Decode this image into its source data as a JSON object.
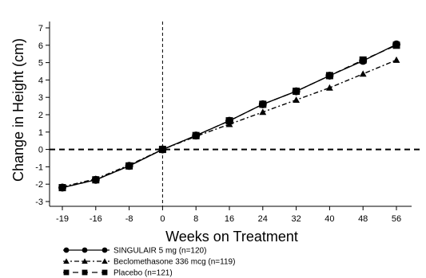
{
  "chart_data": {
    "type": "line",
    "xlabel": "Weeks on Treatment",
    "ylabel": "Change in Height (cm)",
    "x_ticks": [
      -19,
      -16,
      -8,
      0,
      8,
      16,
      24,
      32,
      40,
      48,
      56
    ],
    "x_tick_labels": [
      "-19",
      "-16",
      "-8",
      "0",
      "8",
      "16",
      "24",
      "32",
      "40",
      "48",
      "56"
    ],
    "y_ticks": [
      -3,
      -2,
      -1,
      0,
      1,
      2,
      3,
      4,
      5,
      6,
      7
    ],
    "y_tick_labels": [
      "-3",
      "-2",
      "-1",
      "0",
      "1",
      "2",
      "3",
      "4",
      "5",
      "6",
      "7"
    ],
    "ylim": [
      -3,
      7
    ],
    "reference_lines": {
      "x": 0,
      "y": 0
    },
    "series": [
      {
        "name": "SINGULAIR 5 mg (n=120)",
        "marker": "circle",
        "line_style": "solid",
        "x": [
          -19,
          -16,
          -8,
          0,
          8,
          16,
          24,
          32,
          40,
          48,
          56
        ],
        "values": [
          -2.2,
          -1.75,
          -0.95,
          0,
          0.8,
          1.65,
          2.6,
          3.35,
          4.25,
          5.1,
          6.05
        ]
      },
      {
        "name": "Beclomethasone 336 mcg (n=119)",
        "marker": "triangle",
        "line_style": "dashdot",
        "x": [
          -19,
          -16,
          -8,
          0,
          8,
          16,
          24,
          32,
          40,
          48,
          56
        ],
        "values": [
          -2.15,
          -1.7,
          -0.9,
          0,
          0.75,
          1.45,
          2.15,
          2.85,
          3.55,
          4.35,
          5.15
        ]
      },
      {
        "name": "Placebo (n=121)",
        "marker": "square",
        "line_style": "dashed",
        "x": [
          -19,
          -16,
          -8,
          0,
          8,
          16,
          24,
          32,
          40,
          48,
          56
        ],
        "values": [
          -2.2,
          -1.75,
          -0.95,
          0,
          0.8,
          1.65,
          2.6,
          3.35,
          4.25,
          5.15,
          6.0
        ]
      }
    ]
  }
}
